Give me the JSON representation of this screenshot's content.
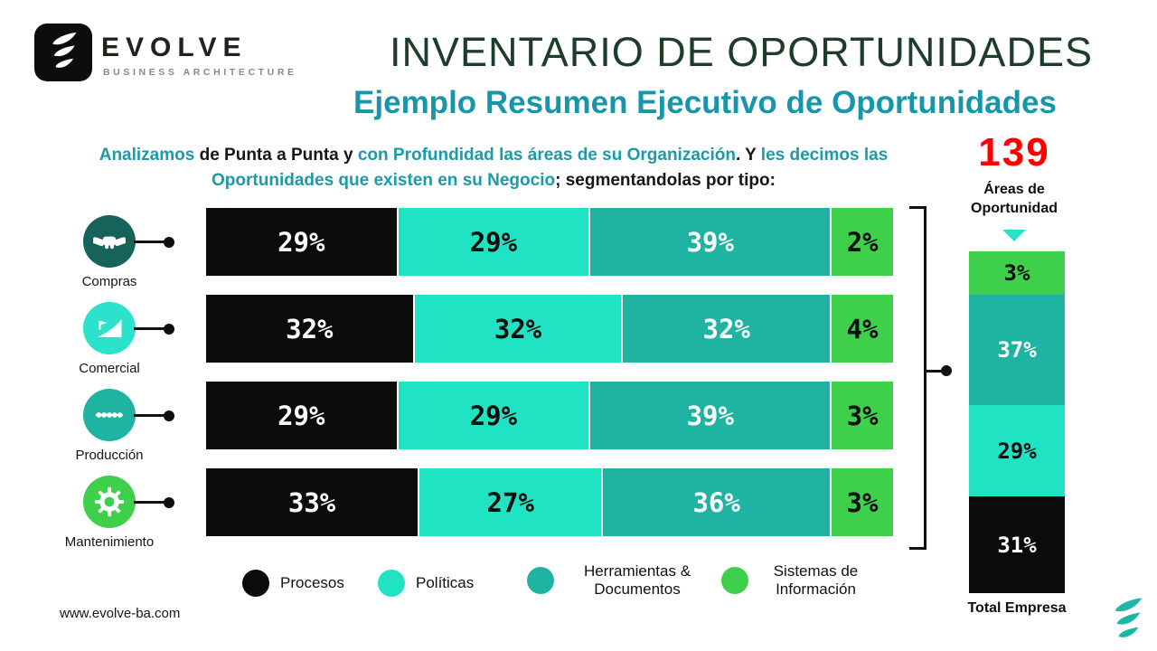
{
  "brand": {
    "name": "EVOLVE",
    "tagline": "BUSINESS ARCHITECTURE",
    "website": "www.evolve-ba.com",
    "logo_icon": "evolve-leaf-icon"
  },
  "header": {
    "title": "INVENTARIO DE OPORTUNIDADES",
    "subtitle": "Ejemplo Resumen Ejecutivo de Oportunidades"
  },
  "intro": {
    "segments": [
      {
        "text": "Analizamos ",
        "style": "teal"
      },
      {
        "text": "de Punta a Punta",
        "style": "dark"
      },
      {
        "text": " y ",
        "style": "dark"
      },
      {
        "text": "con Profundidad las áreas de su Organización",
        "style": "teal"
      },
      {
        "text": ". Y ",
        "style": "dark"
      },
      {
        "text": "les decimos las Oportunidades que existen en su Negocio",
        "style": "teal"
      },
      {
        "text": "; segmentandolas por tipo:",
        "style": "dark"
      }
    ]
  },
  "callout": {
    "value": "139",
    "label": "Áreas de Oportunidad"
  },
  "chart_data": {
    "type": "bar",
    "stacked": true,
    "orientation": "horizontal",
    "units": "%",
    "categories": [
      "Compras",
      "Comercial",
      "Producción",
      "Mantenimiento"
    ],
    "series": [
      {
        "name": "Procesos",
        "color": "#0b0b0b",
        "values": [
          29,
          32,
          29,
          33
        ]
      },
      {
        "name": "Políticas",
        "color": "#20e3c4",
        "values": [
          29,
          32,
          29,
          27
        ]
      },
      {
        "name": "Herramientas & Documentos",
        "color": "#1fb4a2",
        "values": [
          39,
          32,
          39,
          36
        ]
      },
      {
        "name": "Sistemas de Información",
        "color": "#3ecf4b",
        "values": [
          2,
          4,
          3,
          3
        ]
      }
    ],
    "total_count": 139,
    "legend_position": "bottom",
    "grid": false
  },
  "categories_meta": [
    {
      "label": "Compras",
      "icon": "handshake-icon",
      "color": "#15635a"
    },
    {
      "label": "Comercial",
      "icon": "ramp-flag-icon",
      "color": "#2de2cc"
    },
    {
      "label": "Producción",
      "icon": "process-dots-icon",
      "color": "#1fb3a2"
    },
    {
      "label": "Mantenimiento",
      "icon": "gear-icon",
      "color": "#3ecf4b"
    }
  ],
  "legend": [
    {
      "label": "Procesos",
      "color": "#0b0b0b"
    },
    {
      "label": "Políticas",
      "color": "#20e3c4"
    },
    {
      "label": "Herramientas & Documentos",
      "color": "#1fb4a2"
    },
    {
      "label": "Sistemas de Información",
      "color": "#3ecf4b"
    }
  ],
  "total_bar": {
    "caption": "Total Empresa",
    "segments": [
      {
        "series": "Sistemas de Información",
        "value": 3
      },
      {
        "series": "Herramientas & Documentos",
        "value": 37
      },
      {
        "series": "Políticas",
        "value": 29
      },
      {
        "series": "Procesos",
        "value": 31
      }
    ]
  },
  "colors": {
    "title_green": "#1d3c2a",
    "subtitle_teal": "#1796ab",
    "intro_teal": "#1a9aab",
    "highlight_red": "#ff0000",
    "arrow_teal": "#2ae0c6"
  }
}
